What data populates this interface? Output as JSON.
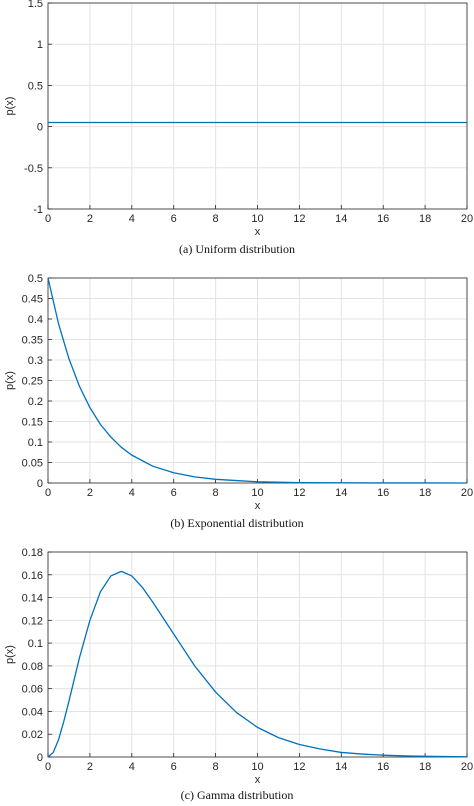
{
  "chart_data": [
    {
      "type": "line",
      "caption": "(a) Uniform distribution",
      "xlabel": "x",
      "ylabel": "p(x)",
      "xlim": [
        0,
        20
      ],
      "ylim": [
        -1,
        1.5
      ],
      "xticks": [
        0,
        2,
        4,
        6,
        8,
        10,
        12,
        14,
        16,
        18,
        20
      ],
      "yticks": [
        -1,
        -0.5,
        0,
        0.5,
        1,
        1.5
      ],
      "ytick_labels": [
        "-1",
        "-0.5",
        "0",
        "0.5",
        "1",
        "1.5"
      ],
      "grid": true,
      "color": "#0072BD",
      "series": [
        {
          "x": [
            0,
            20
          ],
          "y": [
            0.05,
            0.05
          ]
        }
      ]
    },
    {
      "type": "line",
      "caption": "(b) Exponential distribution",
      "xlabel": "x",
      "ylabel": "p(x)",
      "xlim": [
        0,
        20
      ],
      "ylim": [
        0,
        0.5
      ],
      "xticks": [
        0,
        2,
        4,
        6,
        8,
        10,
        12,
        14,
        16,
        18,
        20
      ],
      "yticks": [
        0,
        0.05,
        0.1,
        0.15,
        0.2,
        0.25,
        0.3,
        0.35,
        0.4,
        0.45,
        0.5
      ],
      "ytick_labels": [
        "0",
        "0.05",
        "0.1",
        "0.15",
        "0.2",
        "0.25",
        "0.3",
        "0.35",
        "0.4",
        "0.45",
        "0.5"
      ],
      "grid": true,
      "color": "#0072BD",
      "series": [
        {
          "x": [
            0,
            0.5,
            1,
            1.5,
            2,
            2.5,
            3,
            3.5,
            4,
            5,
            6,
            7,
            8,
            9,
            10,
            12,
            14,
            16,
            18,
            20
          ],
          "y": [
            0.5,
            0.389,
            0.303,
            0.236,
            0.184,
            0.143,
            0.112,
            0.087,
            0.068,
            0.041,
            0.025,
            0.015,
            0.009,
            0.006,
            0.003,
            0.001,
            0.0005,
            0.0002,
            0.0001,
            0.0
          ]
        }
      ]
    },
    {
      "type": "line",
      "caption": "(c) Gamma distribution",
      "xlabel": "x",
      "ylabel": "p(x)",
      "xlim": [
        0,
        20
      ],
      "ylim": [
        0,
        0.18
      ],
      "xticks": [
        0,
        2,
        4,
        6,
        8,
        10,
        12,
        14,
        16,
        18,
        20
      ],
      "yticks": [
        0,
        0.02,
        0.04,
        0.06,
        0.08,
        0.1,
        0.12,
        0.14,
        0.16,
        0.18
      ],
      "ytick_labels": [
        "0",
        "0.02",
        "0.04",
        "0.06",
        "0.08",
        "0.1",
        "0.12",
        "0.14",
        "0.16",
        "0.18"
      ],
      "grid": true,
      "color": "#0072BD",
      "series": [
        {
          "x": [
            0,
            0.25,
            0.5,
            0.75,
            1,
            1.5,
            2,
            2.5,
            3,
            3.5,
            4,
            4.5,
            5,
            6,
            7,
            8,
            9,
            10,
            11,
            12,
            13,
            14,
            15,
            16,
            17,
            18,
            19,
            20
          ],
          "y": [
            0,
            0.004,
            0.015,
            0.031,
            0.049,
            0.087,
            0.12,
            0.145,
            0.159,
            0.163,
            0.159,
            0.149,
            0.136,
            0.108,
            0.08,
            0.057,
            0.039,
            0.026,
            0.017,
            0.011,
            0.007,
            0.004,
            0.0026,
            0.0016,
            0.001,
            0.0006,
            0.0004,
            0.0002
          ]
        }
      ]
    }
  ]
}
